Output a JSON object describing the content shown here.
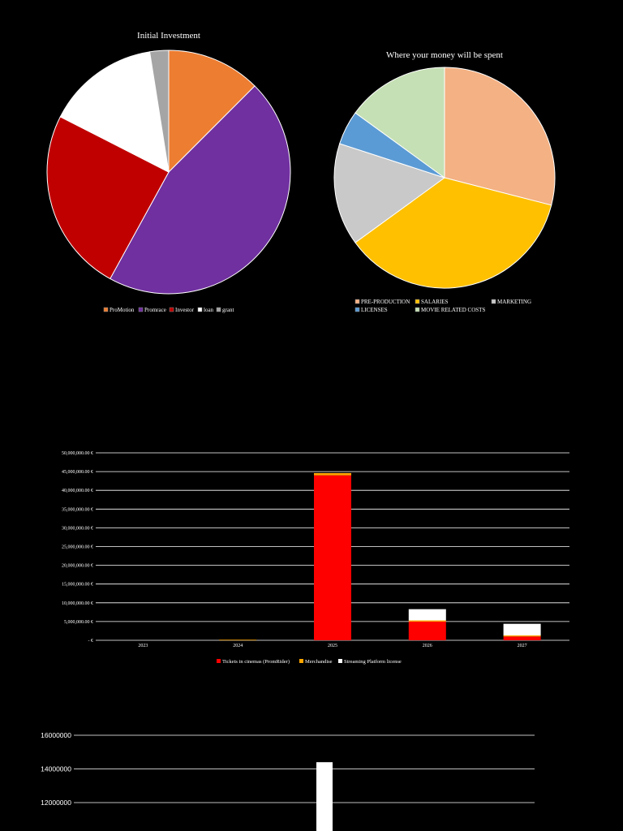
{
  "chart_data": [
    {
      "type": "pie",
      "title": "Initial Investment",
      "categories": [
        "ProMotion",
        "Promrace",
        "Investor",
        "loan",
        "grant"
      ],
      "values": [
        12.5,
        45.5,
        24.5,
        15.0,
        2.5
      ],
      "colors": [
        "#ED7D31",
        "#7030A0",
        "#C00000",
        "#FFFFFF",
        "#A5A5A5"
      ],
      "legend": "bottom"
    },
    {
      "type": "pie",
      "title": "Where your money will be spent",
      "categories": [
        "PRE-PRODUCTION",
        "SALARIES",
        "MARKETING",
        "LICENSES",
        "MOVIE RELATED COSTS"
      ],
      "values": [
        29,
        36,
        15,
        5,
        15
      ],
      "order": [
        0,
        1,
        2,
        3,
        4
      ],
      "colors": [
        "#F4B183",
        "#FFC000",
        "#C9C9C9",
        "#5B9BD5",
        "#C5E0B4"
      ],
      "legend": "bottom"
    },
    {
      "type": "bar",
      "stacked": true,
      "title": "",
      "categories": [
        "2023",
        "2024",
        "2025",
        "2026",
        "2027"
      ],
      "series": [
        {
          "name": "Tickets in cinemas (PromRider)",
          "color": "#FF0000",
          "values": [
            0,
            0,
            44000000,
            5000000,
            1000000
          ]
        },
        {
          "name": "Merchandise",
          "color": "#FFA500",
          "values": [
            0,
            150000,
            600000,
            300000,
            300000
          ]
        },
        {
          "name": "Streaming Platform license",
          "color": "#FFFFFF",
          "values": [
            0,
            0,
            0,
            3000000,
            3100000
          ]
        }
      ],
      "ylim": [
        0,
        50000000
      ],
      "yticks": [
        0,
        5000000,
        10000000,
        15000000,
        20000000,
        25000000,
        30000000,
        35000000,
        40000000,
        45000000,
        50000000
      ],
      "ytick_labels": [
        "-   €",
        "5,000,000.00 €",
        "10,000,000.00 €",
        "15,000,000.00 €",
        "20,000,000.00 €",
        "25,000,000.00 €",
        "30,000,000.00 €",
        "35,000,000.00 €",
        "40,000,000.00 €",
        "45,000,000.00 €",
        "50,000,000.00 €"
      ],
      "grid": true,
      "legend": "bottom"
    },
    {
      "type": "bar",
      "title": "",
      "categories": [
        ""
      ],
      "values": [
        14400000
      ],
      "color": "#FFFFFF",
      "visible_ylim": [
        12000000,
        16000000
      ],
      "yticks": [
        12000000,
        14000000,
        16000000
      ],
      "ytick_labels": [
        "12000000",
        "14000000",
        "16000000"
      ],
      "grid": true
    }
  ]
}
